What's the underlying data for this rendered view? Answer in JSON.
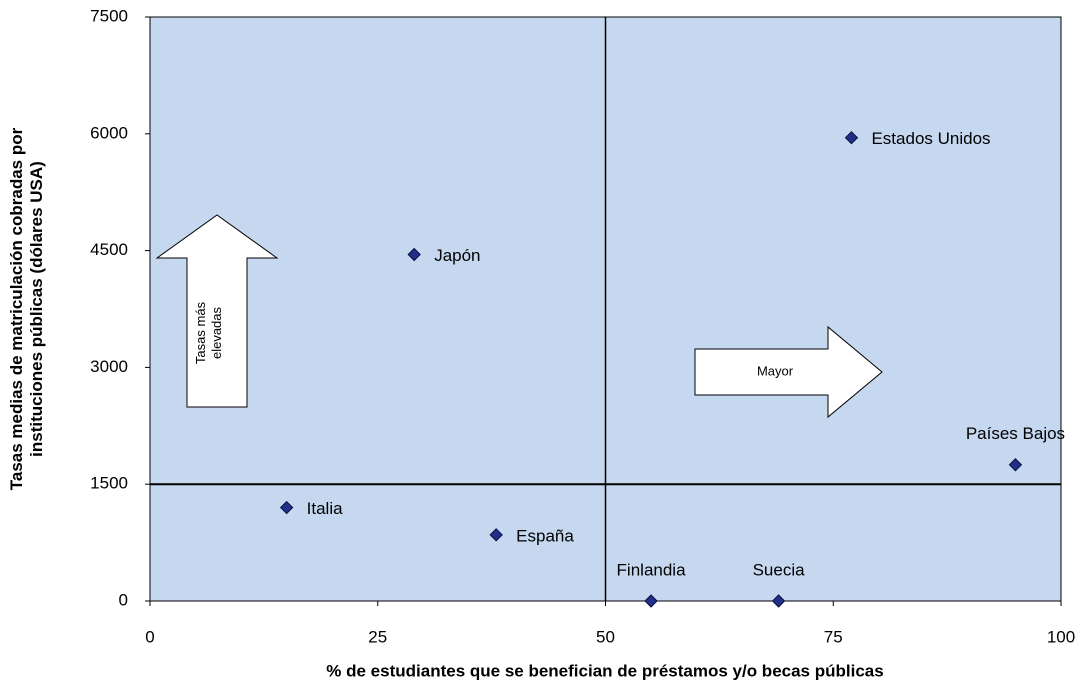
{
  "chart_data": {
    "type": "scatter",
    "x_label": "% de estudiantes que se benefician de préstamos y/o becas públicas",
    "y_label": [
      "Tasas medias de matriculación cobradas por",
      "instituciones públicas (dólares USA)"
    ],
    "xlim": [
      0,
      100
    ],
    "xticks": [
      0,
      25,
      50,
      75,
      100
    ],
    "ylim": [
      0,
      7500
    ],
    "yticks": [
      0,
      1500,
      3000,
      4500,
      6000,
      7500
    ],
    "grid": false,
    "color": "#1f2f8a",
    "background": "#c6d8ef",
    "vlines": [
      50
    ],
    "hlines": [
      1500
    ],
    "points": {
      "labels": [
        "Estados Unidos",
        "Japón",
        "Países Bajos",
        "Italia",
        "España",
        "Finlandia",
        "Suecia"
      ],
      "x": [
        77,
        29,
        95,
        15,
        38,
        55,
        69
      ],
      "y": [
        5950,
        4450,
        1750,
        1200,
        850,
        0,
        0
      ]
    },
    "annotations": [
      {
        "lines": [
          "Tasas más",
          "elevadas"
        ]
      },
      {
        "lines": [
          "Mayor"
        ]
      }
    ]
  }
}
